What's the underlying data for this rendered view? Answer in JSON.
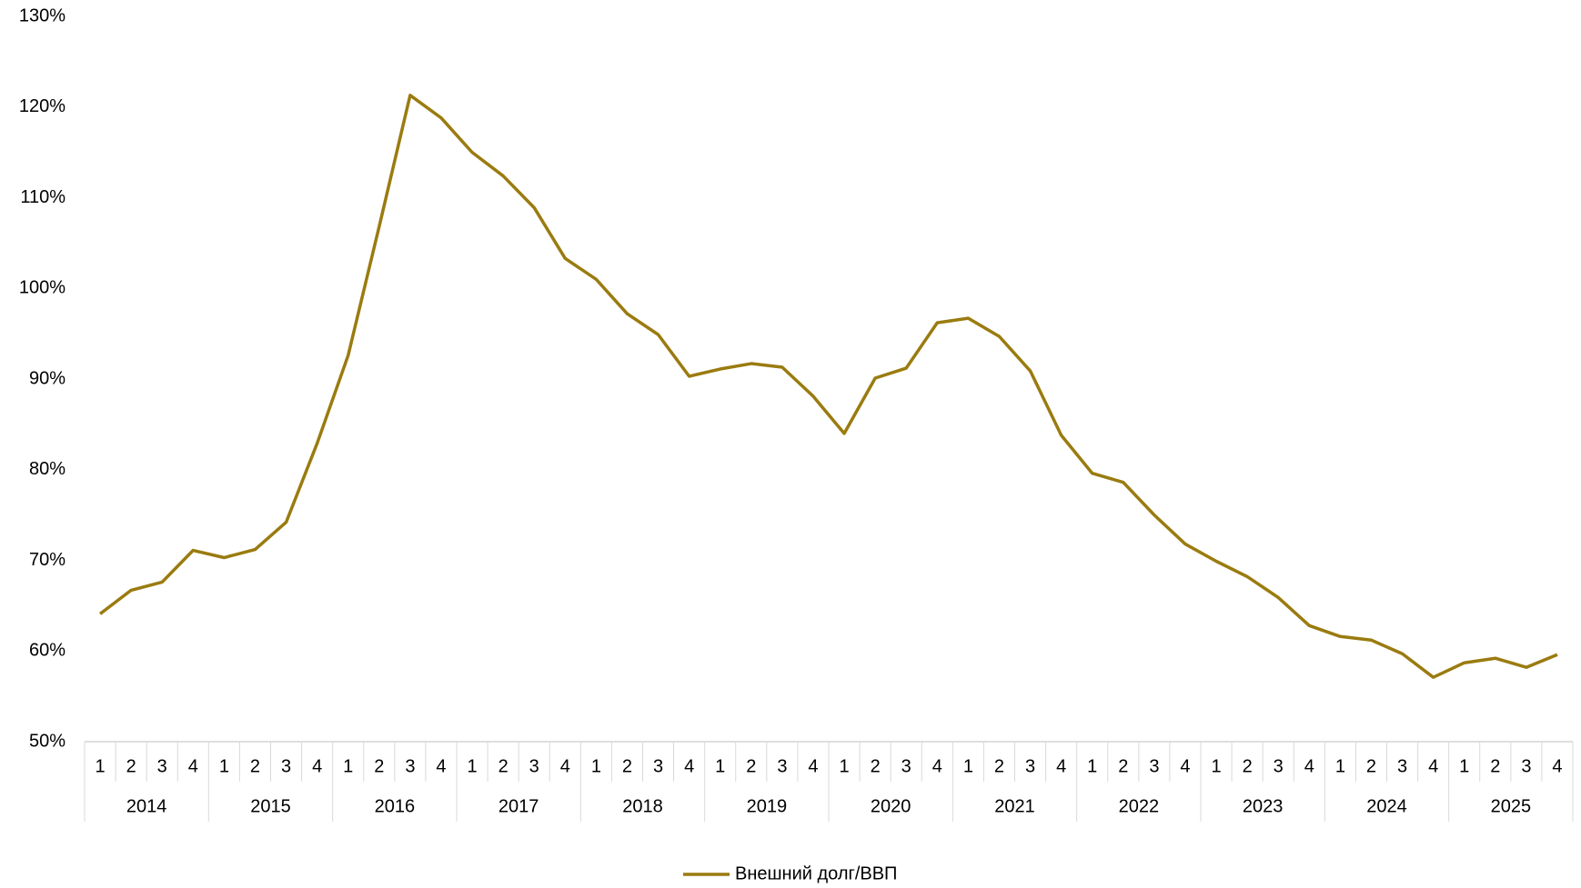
{
  "chart_data": {
    "type": "line",
    "categories": [
      "1",
      "2",
      "3",
      "4",
      "1",
      "2",
      "3",
      "4",
      "1",
      "2",
      "3",
      "4",
      "1",
      "2",
      "3",
      "4",
      "1",
      "2",
      "3",
      "4",
      "1",
      "2",
      "3",
      "4",
      "1",
      "2",
      "3",
      "4",
      "1",
      "2",
      "3",
      "4",
      "1",
      "2",
      "3",
      "4",
      "1",
      "2",
      "3",
      "4",
      "1",
      "2",
      "3",
      "4",
      "1",
      "2",
      "3",
      "4"
    ],
    "years": [
      "2014",
      "2015",
      "2016",
      "2017",
      "2018",
      "2019",
      "2020",
      "2021",
      "2022",
      "2023",
      "2024",
      "2025"
    ],
    "series": [
      {
        "name": "Внешний долг/ВВП",
        "color": "#9a7b0f",
        "values": [
          64.1,
          66.7,
          67.6,
          71.1,
          70.3,
          71.2,
          74.2,
          82.9,
          92.6,
          106.8,
          121.3,
          118.8,
          115.0,
          112.4,
          108.9,
          103.3,
          101.0,
          97.2,
          94.9,
          90.3,
          91.1,
          91.7,
          91.3,
          88.1,
          84.0,
          90.1,
          91.2,
          96.2,
          96.7,
          94.7,
          90.9,
          83.8,
          79.6,
          78.6,
          75.0,
          71.8,
          69.9,
          68.2,
          65.9,
          62.8,
          61.6,
          61.2,
          59.7,
          57.1,
          58.7,
          59.2,
          58.2,
          59.6
        ]
      }
    ],
    "ylim": [
      50,
      130
    ],
    "yticks": [
      {
        "value": 50,
        "label": "50%"
      },
      {
        "value": 60,
        "label": "60%"
      },
      {
        "value": 70,
        "label": "70%"
      },
      {
        "value": 80,
        "label": "80%"
      },
      {
        "value": 90,
        "label": "90%"
      },
      {
        "value": 100,
        "label": "100%"
      },
      {
        "value": 110,
        "label": "110%"
      },
      {
        "value": 120,
        "label": "120%"
      },
      {
        "value": 130,
        "label": "130%"
      }
    ],
    "legend": "bottom"
  }
}
